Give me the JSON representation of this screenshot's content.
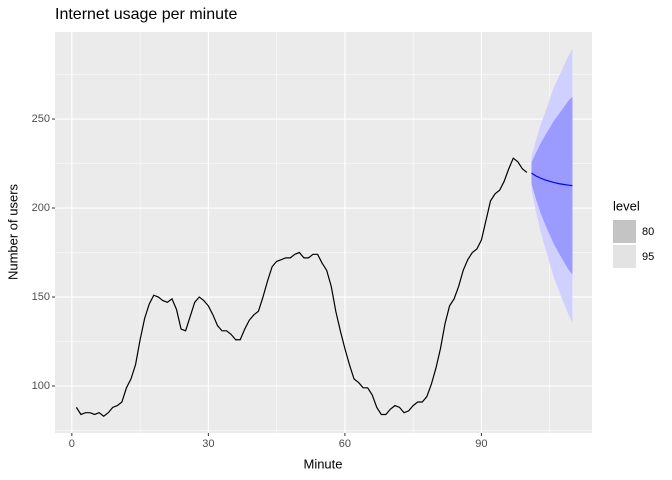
{
  "chart_data": {
    "type": "line",
    "title": "Internet usage per minute",
    "x_label": "Minute",
    "y_label": "Number of users",
    "legend_title": "level",
    "legend_position": "right",
    "grid": true,
    "color": "#000000",
    "forecast_color": "#0000ff",
    "x": [
      1,
      2,
      3,
      4,
      5,
      6,
      7,
      8,
      9,
      10,
      11,
      12,
      13,
      14,
      15,
      16,
      17,
      18,
      19,
      20,
      21,
      22,
      23,
      24,
      25,
      26,
      27,
      28,
      29,
      30,
      31,
      32,
      33,
      34,
      35,
      36,
      37,
      38,
      39,
      40,
      41,
      42,
      43,
      44,
      45,
      46,
      47,
      48,
      49,
      50,
      51,
      52,
      53,
      54,
      55,
      56,
      57,
      58,
      59,
      60,
      61,
      62,
      63,
      64,
      65,
      66,
      67,
      68,
      69,
      70,
      71,
      72,
      73,
      74,
      75,
      76,
      77,
      78,
      79,
      80,
      81,
      82,
      83,
      84,
      85,
      86,
      87,
      88,
      89,
      90,
      91,
      92,
      93,
      94,
      95,
      96,
      97,
      98,
      99,
      100
    ],
    "values": [
      88,
      84,
      85,
      85,
      84,
      85,
      83,
      85,
      88,
      89,
      91,
      99,
      104,
      112,
      126,
      138,
      146,
      151,
      150,
      148,
      147,
      149,
      143,
      132,
      131,
      139,
      147,
      150,
      148,
      145,
      140,
      134,
      131,
      131,
      129,
      126,
      126,
      132,
      137,
      140,
      142,
      150,
      159,
      167,
      170,
      171,
      172,
      172,
      174,
      175,
      172,
      172,
      174,
      174,
      169,
      165,
      156,
      142,
      131,
      121,
      112,
      104,
      102,
      99,
      99,
      95,
      88,
      84,
      84,
      87,
      89,
      88,
      85,
      86,
      89,
      91,
      91,
      94,
      101,
      110,
      121,
      135,
      145,
      149,
      156,
      165,
      171,
      175,
      177,
      182,
      193,
      204,
      208,
      210,
      215,
      222,
      228,
      226,
      222,
      220
    ],
    "forecast_x": [
      101,
      102,
      103,
      104,
      105,
      106,
      107,
      108,
      109,
      110
    ],
    "forecast_mean": [
      219.7,
      218.0,
      216.8,
      215.8,
      215.0,
      214.3,
      213.7,
      213.3,
      212.9,
      212.6
    ],
    "levels": [
      {
        "level": 80,
        "color": "#9a9aff",
        "key_color": "#c4c4c4",
        "lower": [
          213.7,
          205.0,
          197.3,
          190.8,
          185.0,
          179.3,
          174.7,
          170.3,
          165.9,
          162.6
        ],
        "upper": [
          225.7,
          231.0,
          236.3,
          240.8,
          245.0,
          249.3,
          252.7,
          256.3,
          259.9,
          262.6
        ]
      },
      {
        "level": 95,
        "color": "#d0d0ff",
        "key_color": "#e3e3e3",
        "lower": [
          210.5,
          198.0,
          186.8,
          177.8,
          169.0,
          160.3,
          153.7,
          147.3,
          140.9,
          135.6
        ],
        "upper": [
          228.9,
          238.0,
          246.8,
          253.8,
          261.0,
          268.3,
          273.7,
          279.3,
          284.9,
          289.6
        ]
      }
    ],
    "xlim": [
      -3.7,
      114.3
    ],
    "xticks": [
      0,
      30,
      60,
      90
    ],
    "x_minor_ticks": [
      15,
      45,
      75,
      105
    ],
    "ylim": [
      73.6,
      298.9
    ],
    "yticks": [
      100,
      150,
      200,
      250
    ],
    "y_minor_ticks": [
      75,
      125,
      175,
      225,
      275
    ]
  }
}
